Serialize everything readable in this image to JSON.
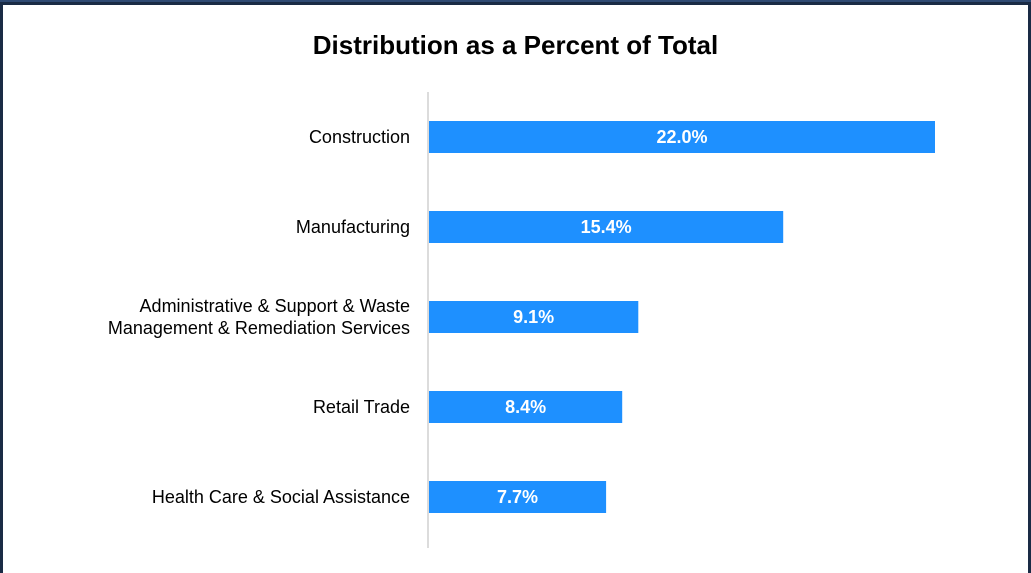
{
  "chart_data": {
    "type": "bar",
    "orientation": "horizontal",
    "title": "Distribution as a Percent of Total",
    "categories": [
      "Construction",
      "Manufacturing",
      "Administrative & Support & Waste Management & Remediation Services",
      "Retail Trade",
      "Health Care & Social Assistance"
    ],
    "category_lines": [
      [
        "Construction"
      ],
      [
        "Manufacturing"
      ],
      [
        "Administrative & Support & Waste",
        "Management & Remediation Services"
      ],
      [
        "Retail Trade"
      ],
      [
        "Health Care & Social Assistance"
      ]
    ],
    "values": [
      22.0,
      15.4,
      9.1,
      8.4,
      7.7
    ],
    "value_labels": [
      "22.0%",
      "15.4%",
      "9.1%",
      "8.4%",
      "7.7%"
    ],
    "xlim": [
      0,
      22.0
    ],
    "bar_color": "#1e90ff",
    "grid": false
  },
  "colors": {
    "frame": "#1a2b45",
    "bar": "#1e90ff",
    "axis": "#d0d0d0"
  }
}
